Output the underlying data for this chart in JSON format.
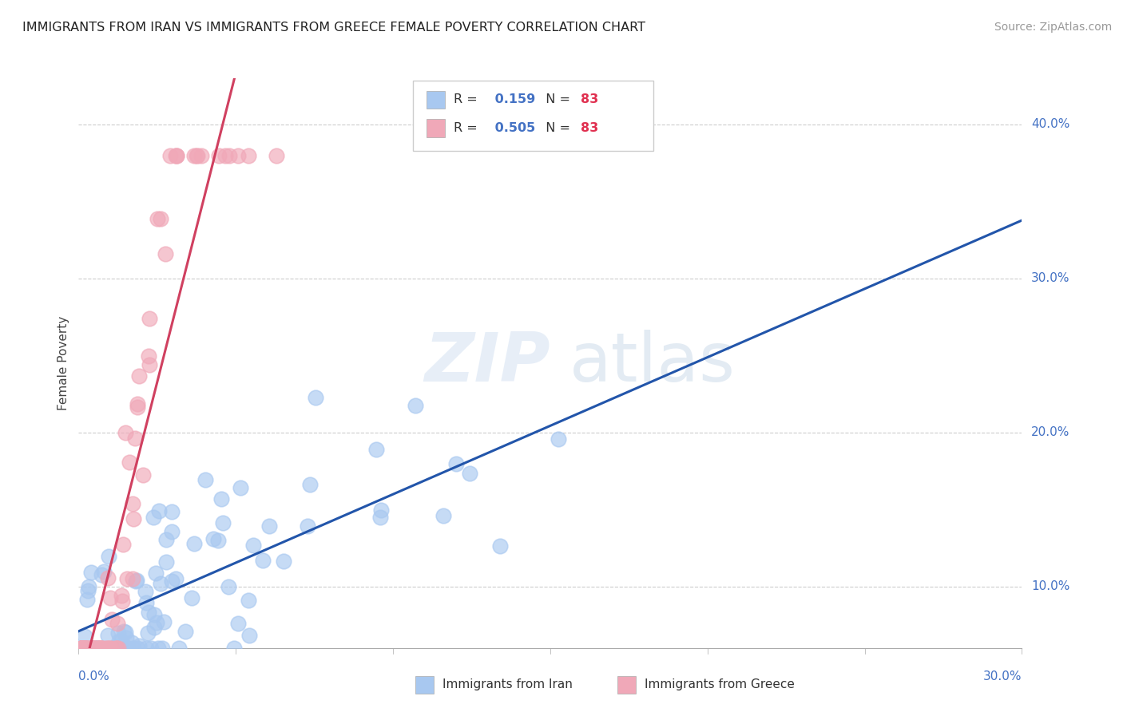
{
  "title": "IMMIGRANTS FROM IRAN VS IMMIGRANTS FROM GREECE FEMALE POVERTY CORRELATION CHART",
  "source": "Source: ZipAtlas.com",
  "ylabel": "Female Poverty",
  "xlim": [
    0.0,
    0.3
  ],
  "ylim": [
    0.06,
    0.43
  ],
  "yticks": [
    0.1,
    0.2,
    0.3,
    0.4
  ],
  "ytick_labels": [
    "10.0%",
    "20.0%",
    "30.0%",
    "40.0%"
  ],
  "iran_R": 0.159,
  "iran_N": 83,
  "greece_R": 0.505,
  "greece_N": 83,
  "iran_color": "#a8c8f0",
  "greece_color": "#f0a8b8",
  "iran_line_color": "#2255aa",
  "greece_line_color": "#d04060",
  "legend_iran": "Immigrants from Iran",
  "legend_greece": "Immigrants from Greece"
}
